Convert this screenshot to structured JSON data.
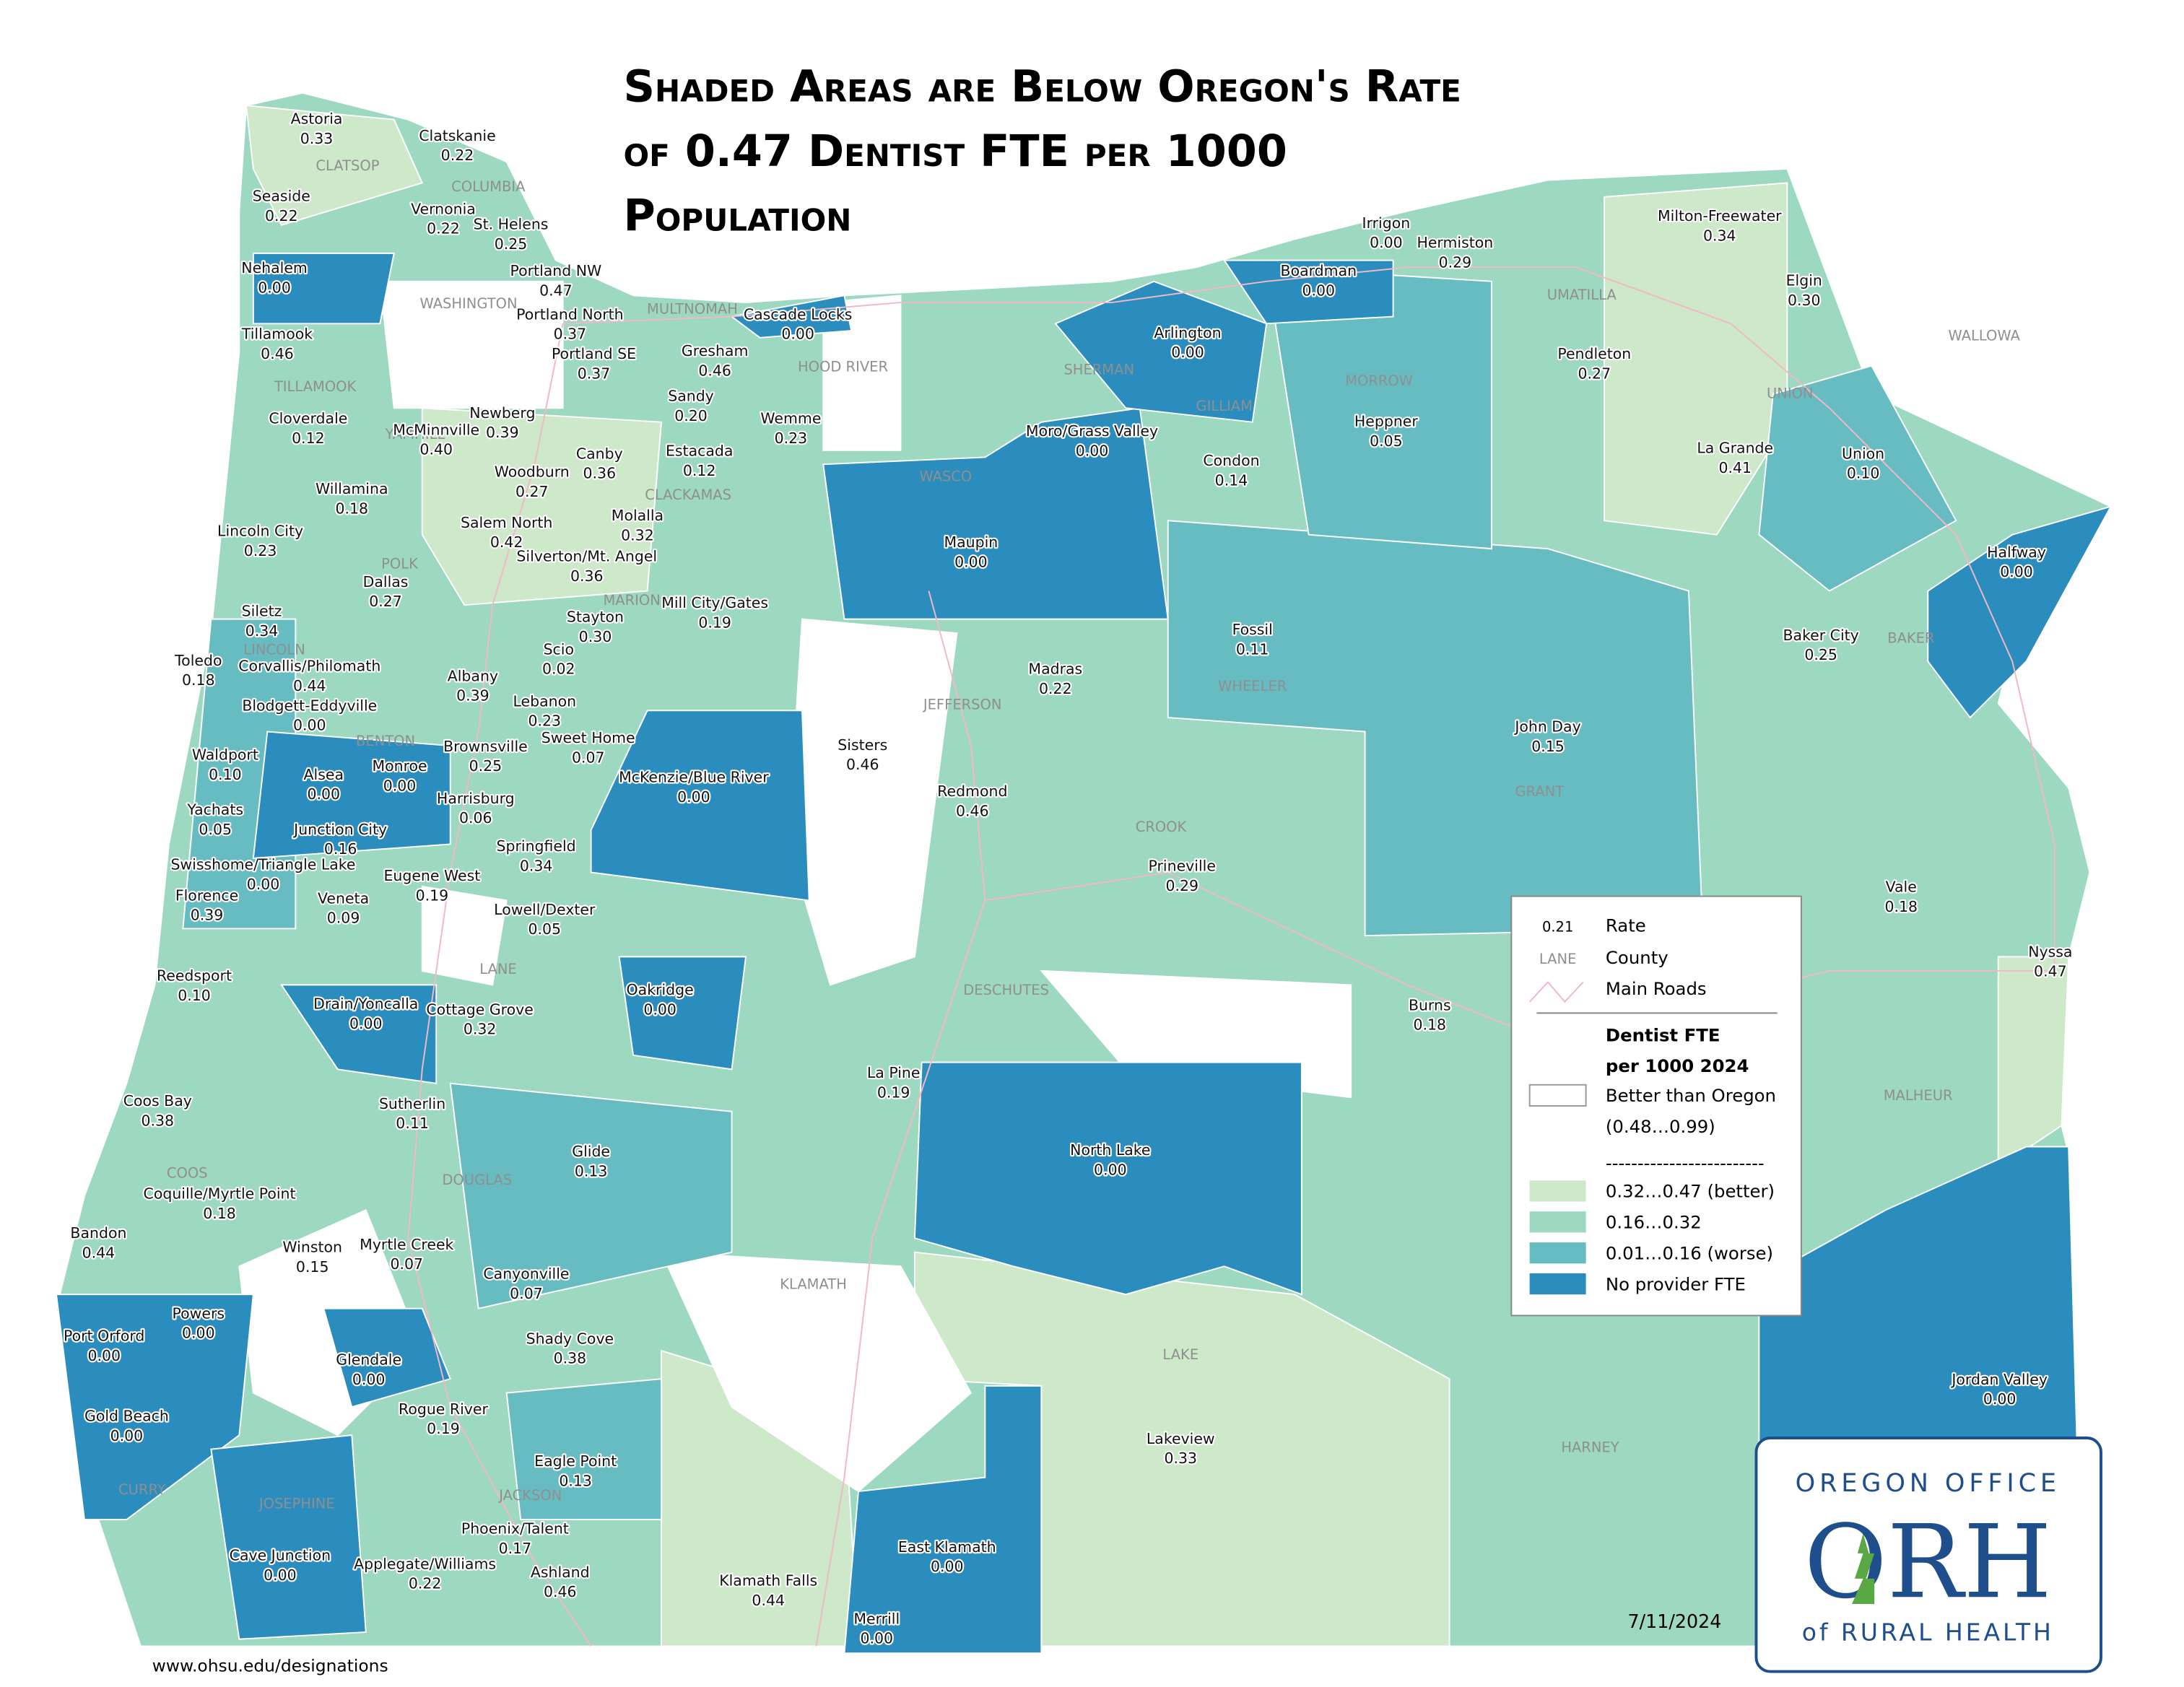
{
  "title": [
    "Shaded Areas are Below Oregon's Rate",
    "of 0.47 Dentist FTE per 1000",
    "Population"
  ],
  "areas": [
    {
      "name": "Astoria",
      "rate": "0.33"
    },
    {
      "name": "Clatskanie",
      "rate": "0.22"
    },
    {
      "name": "Seaside",
      "rate": "0.22"
    },
    {
      "name": "Vernonia",
      "rate": "0.22"
    },
    {
      "name": "St. Helens",
      "rate": "0.25"
    },
    {
      "name": "Portland NW",
      "rate": "0.47"
    },
    {
      "name": "Nehalem",
      "rate": "0.00"
    },
    {
      "name": "Portland North",
      "rate": "0.37"
    },
    {
      "name": "Tillamook",
      "rate": "0.46"
    },
    {
      "name": "Portland SE",
      "rate": "0.37"
    },
    {
      "name": "Cascade Locks",
      "rate": "0.00"
    },
    {
      "name": "Gresham",
      "rate": "0.46"
    },
    {
      "name": "Sandy",
      "rate": "0.20"
    },
    {
      "name": "Wemme",
      "rate": "0.23"
    },
    {
      "name": "Newberg",
      "rate": "0.39"
    },
    {
      "name": "Cloverdale",
      "rate": "0.12"
    },
    {
      "name": "McMinnville",
      "rate": "0.40"
    },
    {
      "name": "Estacada",
      "rate": "0.12"
    },
    {
      "name": "Canby",
      "rate": "0.36"
    },
    {
      "name": "Woodburn",
      "rate": "0.27"
    },
    {
      "name": "Willamina",
      "rate": "0.18"
    },
    {
      "name": "Molalla",
      "rate": "0.32"
    },
    {
      "name": "Lincoln City",
      "rate": "0.23"
    },
    {
      "name": "Salem North",
      "rate": "0.42"
    },
    {
      "name": "Silverton/Mt. Angel",
      "rate": "0.36"
    },
    {
      "name": "Dallas",
      "rate": "0.27"
    },
    {
      "name": "Mill City/Gates",
      "rate": "0.19"
    },
    {
      "name": "Stayton",
      "rate": "0.30"
    },
    {
      "name": "Siletz",
      "rate": "0.34"
    },
    {
      "name": "Scio",
      "rate": "0.02"
    },
    {
      "name": "Toledo",
      "rate": "0.18"
    },
    {
      "name": "Corvallis/Philomath",
      "rate": "0.44"
    },
    {
      "name": "Albany",
      "rate": "0.39"
    },
    {
      "name": "Blodgett-Eddyville",
      "rate": "0.00"
    },
    {
      "name": "Lebanon",
      "rate": "0.23"
    },
    {
      "name": "Sweet Home",
      "rate": "0.07"
    },
    {
      "name": "Brownsville",
      "rate": "0.25"
    },
    {
      "name": "Waldport",
      "rate": "0.10"
    },
    {
      "name": "Alsea",
      "rate": "0.00"
    },
    {
      "name": "Monroe",
      "rate": "0.00"
    },
    {
      "name": "McKenzie/Blue River",
      "rate": "0.00"
    },
    {
      "name": "Harrisburg",
      "rate": "0.06"
    },
    {
      "name": "Yachats",
      "rate": "0.05"
    },
    {
      "name": "Junction City",
      "rate": "0.16"
    },
    {
      "name": "Springfield",
      "rate": "0.34"
    },
    {
      "name": "Swisshome/Triangle Lake",
      "rate": "0.00"
    },
    {
      "name": "Eugene West",
      "rate": "0.19"
    },
    {
      "name": "Florence",
      "rate": "0.39"
    },
    {
      "name": "Veneta",
      "rate": "0.09"
    },
    {
      "name": "Lowell/Dexter",
      "rate": "0.05"
    },
    {
      "name": "Reedsport",
      "rate": "0.10"
    },
    {
      "name": "Oakridge",
      "rate": "0.00"
    },
    {
      "name": "Drain/Yoncalla",
      "rate": "0.00"
    },
    {
      "name": "Cottage Grove",
      "rate": "0.32"
    },
    {
      "name": "Coos Bay",
      "rate": "0.38"
    },
    {
      "name": "Sutherlin",
      "rate": "0.11"
    },
    {
      "name": "Glide",
      "rate": "0.13"
    },
    {
      "name": "Coquille/Myrtle Point",
      "rate": "0.18"
    },
    {
      "name": "Bandon",
      "rate": "0.44"
    },
    {
      "name": "Winston",
      "rate": "0.15"
    },
    {
      "name": "Myrtle Creek",
      "rate": "0.07"
    },
    {
      "name": "Canyonville",
      "rate": "0.07"
    },
    {
      "name": "Powers",
      "rate": "0.00"
    },
    {
      "name": "Port Orford",
      "rate": "0.00"
    },
    {
      "name": "Shady Cove",
      "rate": "0.38"
    },
    {
      "name": "Glendale",
      "rate": "0.00"
    },
    {
      "name": "Gold Beach",
      "rate": "0.00"
    },
    {
      "name": "Rogue River",
      "rate": "0.19"
    },
    {
      "name": "Eagle Point",
      "rate": "0.13"
    },
    {
      "name": "Phoenix/Talent",
      "rate": "0.17"
    },
    {
      "name": "Cave Junction",
      "rate": "0.00"
    },
    {
      "name": "Applegate/Williams",
      "rate": "0.22"
    },
    {
      "name": "Ashland",
      "rate": "0.46"
    },
    {
      "name": "Klamath Falls",
      "rate": "0.44"
    },
    {
      "name": "Merrill",
      "rate": "0.00"
    },
    {
      "name": "East Klamath",
      "rate": "0.00"
    },
    {
      "name": "Lakeview",
      "rate": "0.33"
    },
    {
      "name": "La Pine",
      "rate": "0.19"
    },
    {
      "name": "North Lake",
      "rate": "0.00"
    },
    {
      "name": "Burns",
      "rate": "0.18"
    },
    {
      "name": "Prineville",
      "rate": "0.29"
    },
    {
      "name": "Redmond",
      "rate": "0.46"
    },
    {
      "name": "Sisters",
      "rate": "0.46"
    },
    {
      "name": "Madras",
      "rate": "0.22"
    },
    {
      "name": "Maupin",
      "rate": "0.00"
    },
    {
      "name": "Moro/Grass Valley",
      "rate": "0.00"
    },
    {
      "name": "Arlington",
      "rate": "0.00"
    },
    {
      "name": "Condon",
      "rate": "0.14"
    },
    {
      "name": "Fossil",
      "rate": "0.11"
    },
    {
      "name": "Heppner",
      "rate": "0.05"
    },
    {
      "name": "Boardman",
      "rate": "0.00"
    },
    {
      "name": "Irrigon",
      "rate": "0.00"
    },
    {
      "name": "Hermiston",
      "rate": "0.29"
    },
    {
      "name": "Milton-Freewater",
      "rate": "0.34"
    },
    {
      "name": "Elgin",
      "rate": "0.30"
    },
    {
      "name": "Pendleton",
      "rate": "0.27"
    },
    {
      "name": "La Grande",
      "rate": "0.41"
    },
    {
      "name": "Union",
      "rate": "0.10"
    },
    {
      "name": "Halfway",
      "rate": "0.00"
    },
    {
      "name": "Baker City",
      "rate": "0.25"
    },
    {
      "name": "John Day",
      "rate": "0.15"
    },
    {
      "name": "Vale",
      "rate": "0.18"
    },
    {
      "name": "Nyssa",
      "rate": "0.47"
    },
    {
      "name": "Jordan Valley",
      "rate": "0.00"
    }
  ],
  "counties": [
    "CLATSOP",
    "COLUMBIA",
    "WASHINGTON",
    "MULTNOMAH",
    "HOOD RIVER",
    "WALLOWA",
    "UMATILLA",
    "SHERMAN",
    "MORROW",
    "GILLIAM",
    "UNION",
    "TILLAMOOK",
    "YAMHILL",
    "CLACKAMAS",
    "WASCO",
    "POLK",
    "MARION",
    "LINCOLN",
    "JEFFERSON",
    "WHEELER",
    "BAKER",
    "BENTON",
    "GRANT",
    "CROOK",
    "LANE",
    "DESCHUTES",
    "MALHEUR",
    "DOUGLAS",
    "COOS",
    "KLAMATH",
    "LAKE",
    "HARNEY",
    "CURRY",
    "JOSEPHINE",
    "JACKSON"
  ],
  "legend": {
    "rate_sample": "0.21",
    "rate_label": "Rate",
    "county_sample": "LANE",
    "county_label": "County",
    "roads_label": "Main Roads",
    "title": [
      "Dentist FTE",
      "per 1000 2024"
    ],
    "separator": "-------------------------",
    "classes": [
      {
        "label": "Better than Oregon",
        "range": "(0.48…0.99)",
        "color": "#ffffff"
      },
      {
        "label": "0.32…0.47 (better)",
        "color": "#cde9c9"
      },
      {
        "label": "0.16…0.32",
        "color": "#9dd8c1"
      },
      {
        "label": "0.01…0.16 (worse)",
        "color": "#67bcc1"
      },
      {
        "label": "No provider FTE",
        "color": "#2b8cbe"
      }
    ]
  },
  "date": "7/11/2024",
  "url": "www.ohsu.edu/designations",
  "logo": {
    "top": "OREGON OFFICE",
    "mark": "ORH",
    "bottom": "of RURAL HEALTH"
  }
}
